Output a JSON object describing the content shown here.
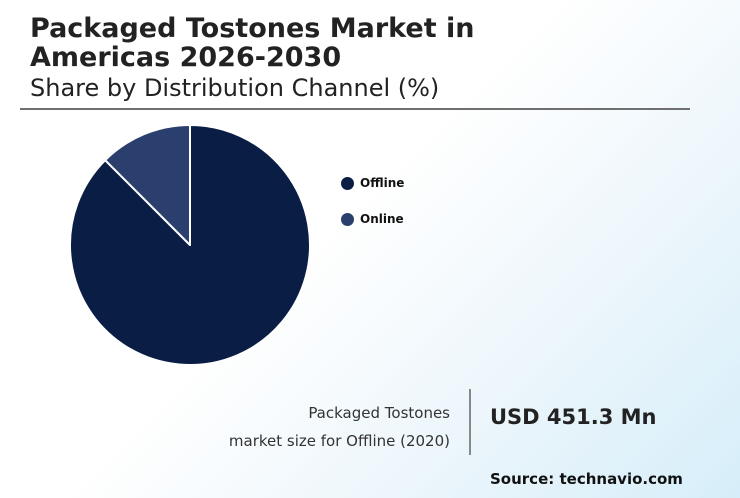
{
  "header": {
    "title": "Packaged Tostones Market in Americas 2026-2030",
    "subtitle": "Share by Distribution Channel (%)"
  },
  "chart_data": {
    "type": "pie",
    "categories": [
      "Offline",
      "Online"
    ],
    "values": [
      87.5,
      12.5
    ],
    "colors": [
      "#0a1d45",
      "#2b3f6e"
    ],
    "slice_border_color": "#ffffff",
    "legend": {
      "placement": "right",
      "entries": [
        "Offline",
        "Online"
      ]
    }
  },
  "stat": {
    "label_line1": "Packaged Tostones",
    "label_line2": "market size for Offline (2020)",
    "value": "USD 451.3 Mn"
  },
  "footer": {
    "source": "Source: technavio.com"
  }
}
